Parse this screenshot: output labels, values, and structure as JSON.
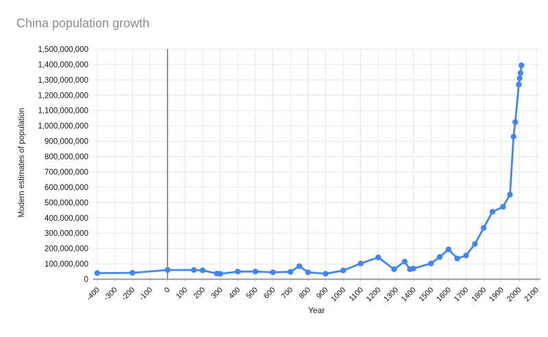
{
  "page": {
    "background": "#ffffff"
  },
  "chart_data": {
    "type": "line",
    "title": "China population growth",
    "xlabel": "Year",
    "ylabel": "Modern estimates of population",
    "xlim": [
      -400,
      2100
    ],
    "ylim": [
      0,
      1500000000
    ],
    "x_tick_step": 100,
    "y_tick_step": 100000000,
    "grid": true,
    "legend": "none",
    "zero_year_line": true,
    "colors": {
      "series": "#4285f4",
      "gridline": "#e6e6e6",
      "axis_baseline": "#999999",
      "zero_line": "#5f6368",
      "tick_label": "#111111",
      "title": "#8c8c8c"
    },
    "series": [
      {
        "name": "Modern estimates of population",
        "color": "#4285f4",
        "points": [
          [
            -400,
            40000000
          ],
          [
            -200,
            42000000
          ],
          [
            1,
            60000000
          ],
          [
            150,
            60000000
          ],
          [
            200,
            58000000
          ],
          [
            280,
            37000000
          ],
          [
            300,
            35000000
          ],
          [
            400,
            50000000
          ],
          [
            500,
            50000000
          ],
          [
            600,
            45000000
          ],
          [
            700,
            48000000
          ],
          [
            750,
            85000000
          ],
          [
            800,
            45000000
          ],
          [
            900,
            36000000
          ],
          [
            1000,
            57000000
          ],
          [
            1100,
            103000000
          ],
          [
            1200,
            142000000
          ],
          [
            1290,
            65000000
          ],
          [
            1350,
            115000000
          ],
          [
            1380,
            65000000
          ],
          [
            1400,
            70000000
          ],
          [
            1500,
            103000000
          ],
          [
            1550,
            145000000
          ],
          [
            1600,
            195000000
          ],
          [
            1650,
            135000000
          ],
          [
            1700,
            155000000
          ],
          [
            1750,
            230000000
          ],
          [
            1800,
            335000000
          ],
          [
            1850,
            440000000
          ],
          [
            1910,
            472000000
          ],
          [
            1950,
            552000000
          ],
          [
            1970,
            930000000
          ],
          [
            1980,
            1025000000
          ],
          [
            2000,
            1270000000
          ],
          [
            2005,
            1310000000
          ],
          [
            2010,
            1345000000
          ],
          [
            2015,
            1395000000
          ]
        ]
      }
    ]
  }
}
